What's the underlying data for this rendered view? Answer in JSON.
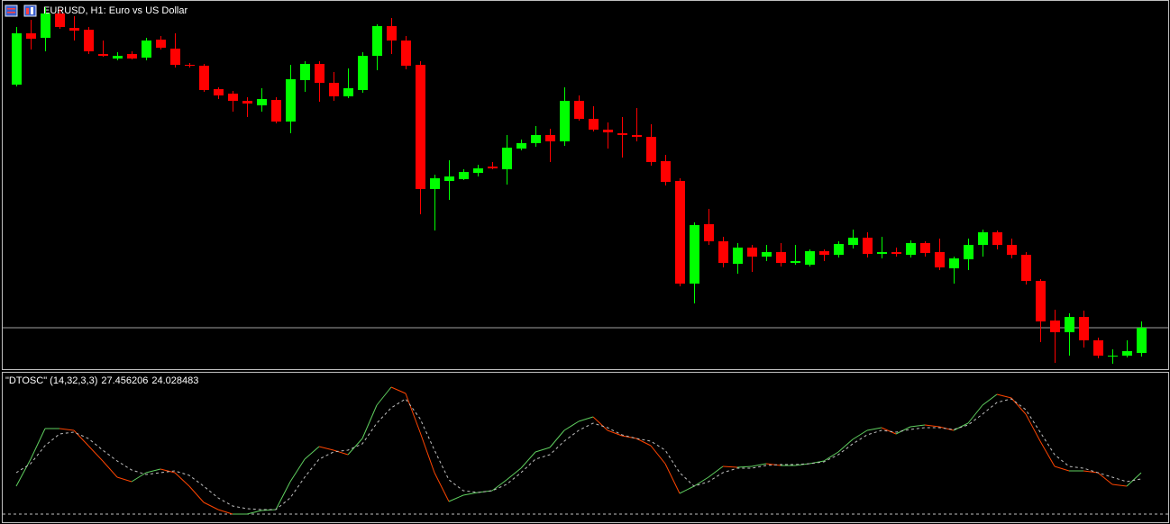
{
  "chart_data": [
    {
      "type": "candlestick",
      "title": "EURUSD, H1:  Euro vs US Dollar",
      "open": [
        316,
        373,
        368,
        395,
        379,
        377,
        350,
        345,
        350,
        346,
        366,
        356,
        338,
        337,
        311,
        306,
        298,
        293,
        299,
        275,
        321,
        339,
        318,
        303,
        310,
        348,
        381,
        365,
        338,
        200,
        209,
        211,
        218,
        225,
        222,
        245,
        251,
        260,
        253,
        298,
        278,
        266,
        262,
        260,
        258,
        231,
        209,
        95,
        161,
        142,
        117,
        135,
        125,
        130,
        118,
        116,
        131,
        127,
        138,
        146,
        128,
        130,
        127,
        140,
        130,
        112,
        122,
        138,
        152,
        138,
        127,
        98,
        54,
        41,
        58,
        32,
        14,
        15,
        18
      ],
      "high": [
        380,
        388,
        402,
        400,
        392,
        380,
        365,
        352,
        353,
        368,
        370,
        373,
        340,
        339,
        313,
        309,
        302,
        312,
        302,
        338,
        342,
        342,
        330,
        334,
        352,
        383,
        390,
        370,
        342,
        216,
        232,
        222,
        227,
        230,
        260,
        255,
        270,
        267,
        313,
        304,
        292,
        274,
        280,
        290,
        272,
        238,
        212,
        163,
        178,
        147,
        140,
        138,
        138,
        140,
        138,
        133,
        133,
        142,
        155,
        152,
        147,
        135,
        143,
        142,
        145,
        125,
        145,
        155,
        154,
        145,
        130,
        100,
        66,
        62,
        65,
        35,
        22,
        32,
        53
      ],
      "low": [
        314,
        355,
        353,
        378,
        365,
        350,
        347,
        343,
        344,
        343,
        355,
        335,
        335,
        308,
        300,
        286,
        280,
        286,
        273,
        262,
        308,
        297,
        298,
        301,
        307,
        332,
        350,
        333,
        172,
        154,
        188,
        210,
        214,
        222,
        205,
        243,
        247,
        230,
        248,
        276,
        264,
        245,
        235,
        253,
        226,
        204,
        92,
        73,
        138,
        113,
        106,
        108,
        120,
        114,
        116,
        114,
        120,
        124,
        134,
        124,
        123,
        125,
        124,
        125,
        110,
        95,
        110,
        125,
        133,
        123,
        94,
        30,
        7,
        15,
        24,
        12,
        6,
        13,
        14
      ],
      "close": [
        373,
        367,
        395,
        380,
        376,
        353,
        348,
        348,
        345,
        365,
        357,
        338,
        337,
        310,
        304,
        298,
        295,
        300,
        275,
        322,
        339,
        318,
        303,
        312,
        348,
        381,
        365,
        337,
        200,
        212,
        214,
        219,
        223,
        223,
        246,
        251,
        260,
        253,
        298,
        278,
        266,
        263,
        260,
        258,
        230,
        208,
        95,
        160,
        142,
        118,
        135,
        125,
        130,
        118,
        120,
        131,
        127,
        139,
        146,
        128,
        130,
        128,
        140,
        129,
        113,
        123,
        138,
        152,
        138,
        127,
        98,
        53,
        41,
        58,
        32,
        15,
        15,
        20,
        46
      ],
      "ylim": [
        0,
        410
      ],
      "up_color": "#00ff00",
      "down_color": "#ff0000",
      "price_line": 46
    },
    {
      "type": "line",
      "title": "\"DTOSC\" (14,32,3,3)",
      "series": [
        {
          "values": [
            20,
            35,
            52,
            52,
            51,
            42.5,
            34,
            25,
            22.5,
            27.5,
            29.5,
            27.5,
            20,
            11,
            7,
            4.5,
            4.5,
            6.5,
            7,
            22.5,
            35,
            42,
            40,
            37.5,
            46.5,
            65,
            75,
            71.5,
            50,
            27.5,
            11.5,
            15,
            16.5,
            17.5,
            23.5,
            30,
            39,
            41.5,
            51,
            56,
            58.5,
            51,
            48,
            46.5,
            42.5,
            32.5,
            16,
            20,
            25,
            31,
            30.5,
            31,
            32.5,
            31.5,
            31.5,
            32.5,
            34,
            39,
            46,
            51,
            52.5,
            49,
            53,
            54,
            53,
            51,
            55,
            65,
            71,
            69,
            60,
            45,
            31,
            28.5,
            28.5,
            27.5,
            21,
            20,
            27.456206
          ],
          "up_color": "#5fcf5f",
          "down_color": "#ff4500"
        },
        {
          "values": [
            27.5,
            32.5,
            42.5,
            49,
            50,
            46.5,
            40,
            34,
            29,
            26.5,
            27.5,
            28.5,
            26,
            20,
            13.5,
            9,
            7.5,
            7,
            7,
            13.5,
            25,
            35,
            39,
            40,
            43.5,
            55,
            63.5,
            68.5,
            57.5,
            40,
            23.5,
            17.5,
            16.5,
            17.5,
            21,
            27.5,
            35,
            37.5,
            45,
            51,
            55,
            52.5,
            48.5,
            46.5,
            45,
            40,
            27.5,
            20,
            22.5,
            27.5,
            30,
            30,
            31.5,
            32,
            32,
            32.5,
            33.5,
            37.5,
            43.5,
            48.5,
            51,
            50,
            51.5,
            52.5,
            52.5,
            51.5,
            54,
            60,
            66.5,
            68.5,
            62.5,
            50,
            37.5,
            31,
            30,
            27.5,
            25,
            22.5,
            24.028483
          ],
          "color": "#c0c0c0",
          "dashed": true
        }
      ],
      "ylim": [
        0,
        83
      ],
      "levels": [
        4.5
      ]
    }
  ]
}
